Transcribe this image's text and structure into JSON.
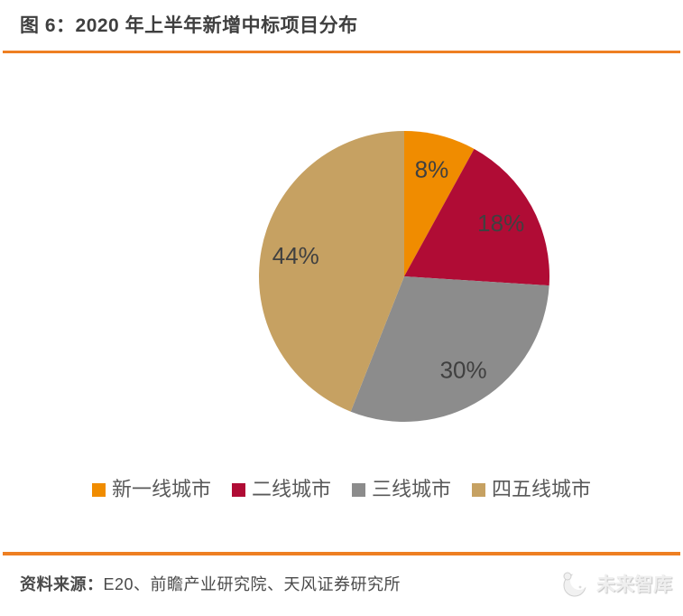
{
  "header": {
    "title": "图 6：2020 年上半年新增中标项目分布"
  },
  "chart_data": {
    "type": "pie",
    "title": "2020 年上半年新增中标项目分布",
    "categories": [
      "新一线城市",
      "二线城市",
      "三线城市",
      "四五线城市"
    ],
    "values": [
      8,
      18,
      30,
      44
    ],
    "unit": "%",
    "start_angle_deg": 0,
    "direction": "clockwise",
    "legend_position": "bottom",
    "data_labels": "percent-inside",
    "slices": [
      {
        "name": "新一线城市",
        "value": 8,
        "label": "8%",
        "color": "#F08C00"
      },
      {
        "name": "二线城市",
        "value": 18,
        "label": "18%",
        "color": "#B00C35"
      },
      {
        "name": "三线城市",
        "value": 30,
        "label": "30%",
        "color": "#8C8C8C"
      },
      {
        "name": "四五线城市",
        "value": 44,
        "label": "44%",
        "color": "#C6A162"
      }
    ]
  },
  "footer": {
    "source_label": "资料来源：",
    "source_text": "E20、前瞻产业研究院、天风证券研究所",
    "logo_text": "未来智库",
    "logo_icon": "crescent-moon-icon"
  },
  "colors": {
    "accent_rule": "#EE7F22",
    "title_text": "#3F3F3F",
    "slice_label_text": "#404040",
    "legend_text": "#595959",
    "source_text": "#4A4A4A",
    "logo_watermark": "#EFEFEF"
  }
}
